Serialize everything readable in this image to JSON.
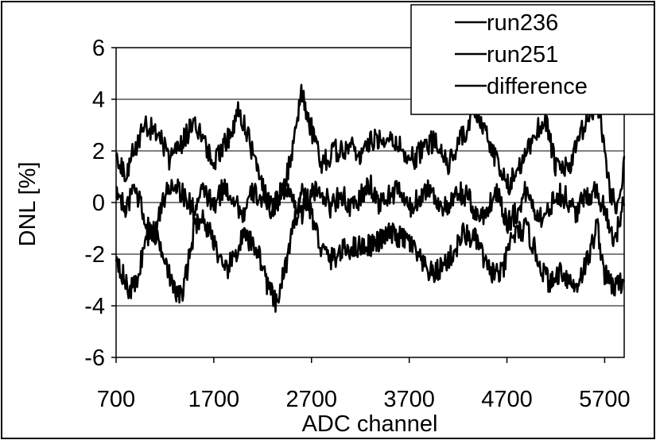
{
  "chart_data": {
    "type": "line",
    "xlabel": "ADC channel",
    "ylabel": "DNL [%]",
    "xlim": [
      700,
      5900
    ],
    "ylim": [
      -6,
      6
    ],
    "x_ticks": [
      700,
      1700,
      2700,
      3700,
      4700,
      5700
    ],
    "y_ticks": [
      -6,
      -4,
      -2,
      0,
      2,
      4,
      6
    ],
    "x_tick_labels": [
      "700",
      "1700",
      "2700",
      "3700",
      "4700",
      "5700"
    ],
    "y_tick_labels": [
      "-6",
      "-4",
      "-2",
      "0",
      "2",
      "4",
      "6"
    ],
    "grid": "horizontal",
    "legend_position": "top-right",
    "line_color": "#000000",
    "series": [
      {
        "name": "run236",
        "x": [
          700,
          820,
          900,
          1000,
          1060,
          1200,
          1280,
          1380,
          1500,
          1560,
          1700,
          1800,
          1900,
          2000,
          2150,
          2250,
          2340,
          2450,
          2600,
          2650,
          2800,
          2900,
          3050,
          3200,
          3350,
          3500,
          3700,
          3850,
          3950,
          4150,
          4250,
          4400,
          4500,
          4650,
          4750,
          4900,
          5050,
          5150,
          5250,
          5400,
          5550,
          5620,
          5700,
          5800,
          5900
        ],
        "values": [
          -2.0,
          -3.4,
          -3.2,
          -1.5,
          -1.0,
          -2.0,
          -3.4,
          -3.6,
          -1.0,
          -0.5,
          -1.4,
          -2.8,
          -2.2,
          -1.3,
          -1.8,
          -3.2,
          -4.0,
          -2.2,
          0.5,
          0.2,
          -1.8,
          -2.2,
          -1.8,
          -1.7,
          -1.6,
          -1.2,
          -1.5,
          -2.5,
          -2.8,
          -2.0,
          -1.2,
          -1.5,
          -2.6,
          -2.8,
          -1.3,
          -1.0,
          -2.5,
          -3.2,
          -2.6,
          -3.3,
          -2.0,
          -0.8,
          -2.8,
          -3.3,
          -3.0
        ]
      },
      {
        "name": "run251",
        "x": [
          700,
          800,
          900,
          1000,
          1150,
          1250,
          1350,
          1500,
          1600,
          1700,
          1850,
          1950,
          2050,
          2200,
          2300,
          2400,
          2500,
          2600,
          2650,
          2800,
          2950,
          3100,
          3200,
          3350,
          3500,
          3650,
          3750,
          3850,
          3950,
          4100,
          4250,
          4400,
          4550,
          4700,
          4850,
          5000,
          5100,
          5200,
          5350,
          5450,
          5600,
          5650,
          5750,
          5850,
          5900
        ],
        "values": [
          1.8,
          1.2,
          2.2,
          3.0,
          2.6,
          1.6,
          2.2,
          3.1,
          2.4,
          1.6,
          2.5,
          3.6,
          2.6,
          0.5,
          -0.2,
          0.3,
          2.0,
          4.2,
          3.5,
          1.5,
          2.0,
          2.2,
          1.8,
          2.5,
          2.6,
          1.9,
          1.7,
          2.1,
          2.4,
          1.5,
          2.6,
          3.5,
          2.0,
          0.6,
          1.5,
          2.8,
          3.2,
          1.3,
          1.4,
          2.6,
          3.8,
          3.5,
          0.5,
          -0.3,
          1.8
        ]
      },
      {
        "name": "difference",
        "x": [
          700,
          800,
          900,
          1000,
          1100,
          1200,
          1300,
          1400,
          1500,
          1600,
          1700,
          1800,
          1900,
          2000,
          2100,
          2200,
          2300,
          2400,
          2500,
          2600,
          2700,
          2800,
          2900,
          3000,
          3100,
          3200,
          3300,
          3400,
          3500,
          3600,
          3700,
          3800,
          3900,
          4000,
          4100,
          4200,
          4300,
          4400,
          4500,
          4600,
          4700,
          4800,
          4900,
          5000,
          5100,
          5200,
          5300,
          5400,
          5500,
          5600,
          5700,
          5800,
          5900
        ],
        "values": [
          0.3,
          -0.2,
          0.5,
          -0.8,
          -1.2,
          0.3,
          0.8,
          0.2,
          -0.3,
          0.5,
          -0.2,
          0.6,
          0.2,
          -0.5,
          0.4,
          0.1,
          -0.3,
          0.6,
          0.2,
          -0.4,
          0.3,
          0.5,
          -0.2,
          0.4,
          -0.3,
          0.2,
          0.7,
          -0.1,
          0.3,
          0.5,
          -0.3,
          0.2,
          0.6,
          0.0,
          -0.3,
          0.4,
          0.2,
          -0.6,
          -0.3,
          0.5,
          -0.8,
          -0.4,
          0.5,
          -0.4,
          -0.6,
          0.4,
          0.2,
          -0.4,
          0.2,
          0.5,
          -0.2,
          -1.5,
          0.0
        ]
      }
    ]
  }
}
